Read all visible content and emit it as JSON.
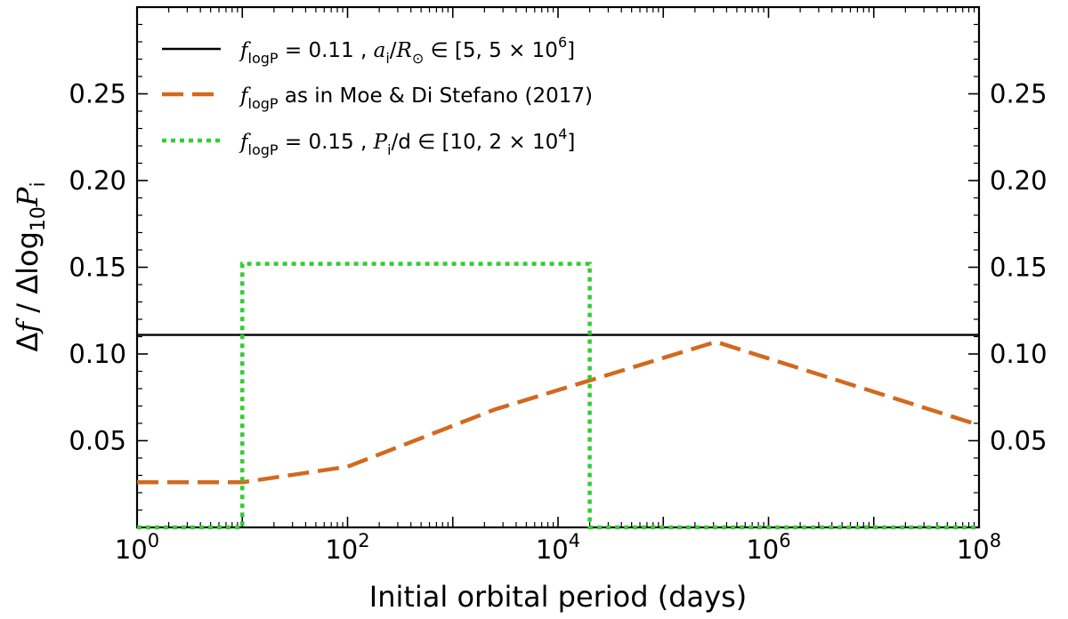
{
  "chart_data": {
    "type": "line",
    "xscale": "log",
    "xlabel": "Initial orbital period (days)",
    "ylabel": "Δf / Δlog10 Pi",
    "xlim_exp": [
      0,
      8
    ],
    "ylim": [
      0,
      0.3
    ],
    "x_tick_labels": [
      {
        "base": "10",
        "exp": "0",
        "value_exp": 0
      },
      {
        "base": "10",
        "exp": "2",
        "value_exp": 2
      },
      {
        "base": "10",
        "exp": "4",
        "value_exp": 4
      },
      {
        "base": "10",
        "exp": "6",
        "value_exp": 6
      },
      {
        "base": "10",
        "exp": "8",
        "value_exp": 8
      }
    ],
    "y_ticks": [
      0.05,
      0.1,
      0.15,
      0.2,
      0.25
    ],
    "y_tick_labels": [
      "0.05",
      "0.10",
      "0.15",
      "0.20",
      "0.25"
    ],
    "series": [
      {
        "name": "flogP = 0.11, ai/R⊙ ∈ [5, 5 × 10^6]",
        "style": "solid",
        "color": "#000000",
        "log10_x": [
          0,
          8
        ],
        "y": [
          0.111,
          0.111
        ]
      },
      {
        "name": "flogP as in Moe & Di Stefano (2017)",
        "style": "dashed",
        "color": "#d2691e",
        "log10_x": [
          0,
          1,
          2,
          3.4,
          5.5,
          8
        ],
        "y": [
          0.026,
          0.026,
          0.035,
          0.068,
          0.107,
          0.059
        ]
      },
      {
        "name": "flogP = 0.15, Pi/d ∈ [10, 2 × 10^4]",
        "style": "dotted",
        "color": "#33cc33",
        "log10_x": [
          0,
          1,
          1,
          4.301,
          4.301,
          8
        ],
        "y": [
          0,
          0,
          0.152,
          0.152,
          0,
          0
        ]
      }
    ],
    "legend": {
      "location": "top-left",
      "entries": [
        {
          "f": "f",
          "sub": "logP",
          "rest": " = 0.11 , ",
          "a": "a",
          "asub": "i",
          "slash": "/",
          "R": "R",
          "Rsub": "⊙",
          "range": " ∈ [5, 5 × 10",
          "sup": "6",
          "close": "]"
        },
        {
          "f": "f",
          "sub": "logP",
          "rest": " as in Moe & Di Stefano (2017)"
        },
        {
          "f": "f",
          "sub": "logP",
          "rest": " = 0.15 , ",
          "P": "P",
          "Psub": "i",
          "unit": "/d ∈ [10, 2 × 10",
          "sup": "4",
          "close": "]"
        }
      ]
    }
  }
}
